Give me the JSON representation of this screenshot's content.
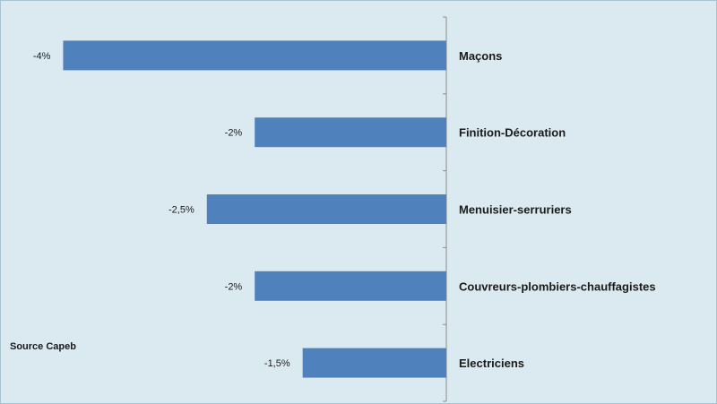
{
  "chart_data": {
    "type": "bar",
    "orientation": "horizontal",
    "categories": [
      "Maçons",
      "Finition-Décoration",
      "Menuisier-serruriers",
      "Couvreurs-plombiers-chauffagistes",
      "Electriciens"
    ],
    "values": [
      -4,
      -2,
      -2.5,
      -2,
      -1.5
    ],
    "value_labels": [
      "-4%",
      "-2%",
      "-2,5%",
      "-2%",
      "-1,5%"
    ],
    "xlim": [
      -4.5,
      0
    ],
    "grid": false,
    "legend": "none",
    "bar_color": "#4f81bd"
  },
  "source": "Source Capeb"
}
